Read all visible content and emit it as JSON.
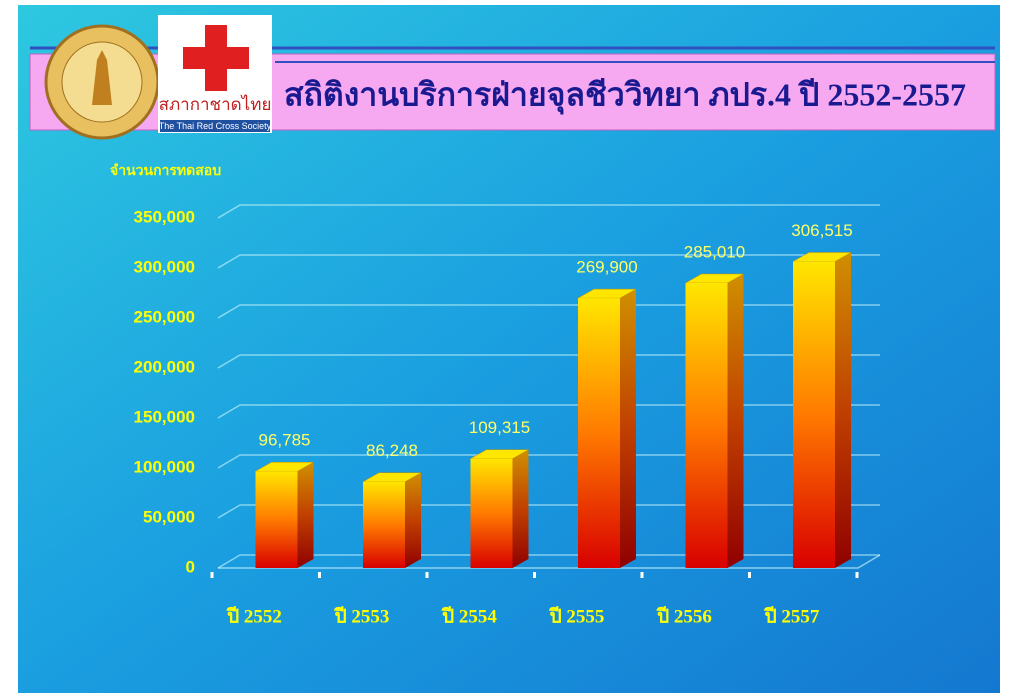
{
  "logos": {
    "red_cross": {
      "name": "สภากาชาดไทย",
      "subtitle": "The Thai Red Cross Society"
    }
  },
  "chart_data": {
    "type": "bar",
    "title": "สถิติงานบริการฝ่ายจุลชีววิทยา ภปร.4 ปี 2552-2557",
    "y_label": "จำนวนการทดสอบ",
    "categories": [
      "ปี 2552",
      "ปี 2553",
      "ปี 2554",
      "ปี 2555",
      "ปี 2556",
      "ปี 2557"
    ],
    "values": [
      96785,
      86248,
      109315,
      269900,
      285010,
      306515
    ],
    "value_labels": [
      "96,785",
      "86,248",
      "109,315",
      "269,900",
      "285,010",
      "306,515"
    ],
    "colors": [
      "#ffe600",
      "#ff7a00",
      "#d80000"
    ],
    "ylim": [
      0,
      350000
    ],
    "yticks": [
      0,
      {
        "value": 50000,
        "label": "50,000"
      },
      {
        "value": 100000,
        "label": "100,000"
      },
      {
        "value": 150000,
        "label": "150,000"
      },
      {
        "value": 200000,
        "label": "200,000"
      },
      {
        "value": 250000,
        "label": "250,000"
      },
      {
        "value": 300000,
        "label": "300,000"
      },
      {
        "value": 350000,
        "label": "350,000"
      }
    ],
    "grid": true
  }
}
